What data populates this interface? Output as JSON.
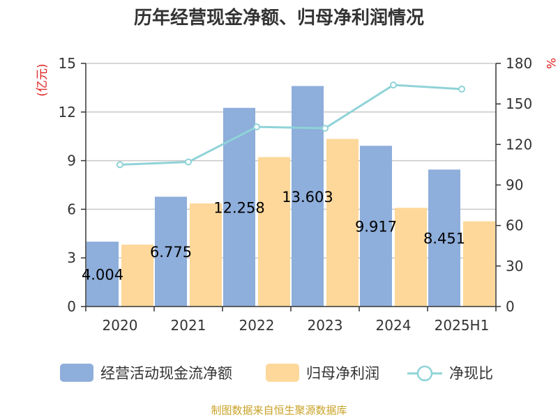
{
  "chart_data": {
    "type": "bar",
    "title": "历年经营现金净额、归母净利润情况",
    "categories": [
      "2020",
      "2021",
      "2022",
      "2023",
      "2024",
      "2025H1"
    ],
    "series": [
      {
        "name": "经营活动现金流净额",
        "type": "bar",
        "axis": "left",
        "color": "#8eaedb",
        "values": [
          4.004,
          6.775,
          12.258,
          13.603,
          9.917,
          8.451
        ]
      },
      {
        "name": "归母净利润",
        "type": "bar",
        "axis": "left",
        "color": "#fdd89a",
        "values": [
          3.82,
          6.36,
          9.22,
          10.34,
          6.09,
          5.26
        ]
      },
      {
        "name": "净现比",
        "type": "line",
        "axis": "right",
        "color": "#8fd3d8",
        "values": [
          105,
          107,
          133,
          132,
          164,
          161
        ]
      }
    ],
    "data_labels": [
      "4.004",
      "6.775",
      "12.258",
      "13.603",
      "9.917",
      "8.451"
    ],
    "left_axis": {
      "unit": "(亿元)",
      "ylim": [
        0,
        15
      ],
      "ticks": [
        "0",
        "3",
        "6",
        "9",
        "12",
        "15"
      ]
    },
    "right_axis": {
      "unit": "%",
      "ylim": [
        0,
        180
      ],
      "ticks": [
        "0",
        "30",
        "60",
        "90",
        "120",
        "150",
        "180"
      ]
    },
    "grid": true,
    "legend_position": "bottom"
  },
  "source_text": "制图数据来自恒生聚源数据库"
}
